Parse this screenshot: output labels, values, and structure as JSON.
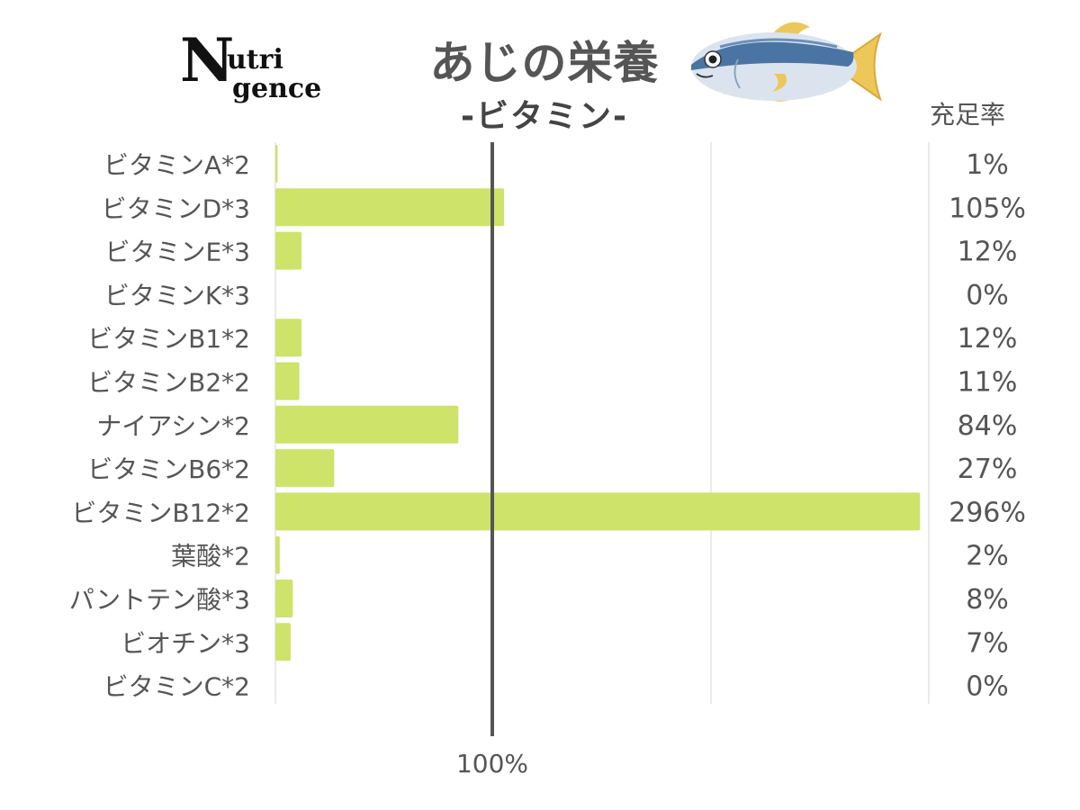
{
  "header": {
    "logo_text": "Nutrigence",
    "title": "あじの栄養",
    "subtitle": "-ビタミン-",
    "rate_column_label": "充足率"
  },
  "icons": {
    "logo": "nutrigence-logo-icon",
    "fish": "horse-mackerel-fish-icon"
  },
  "colors": {
    "bar": "#cde36a",
    "reference_line": "#555555",
    "grid": "#e3e3e3",
    "text": "#555555"
  },
  "chart_data": {
    "type": "bar",
    "orientation": "horizontal",
    "categories": [
      "ビタミンA*2",
      "ビタミンD*3",
      "ビタミンE*3",
      "ビタミンK*3",
      "ビタミンB1*2",
      "ビタミンB2*2",
      "ナイアシン*2",
      "ビタミンB6*2",
      "ビタミンB12*2",
      "葉酸*2",
      "パントテン酸*3",
      "ビオチン*3",
      "ビタミンC*2"
    ],
    "values": [
      1,
      105,
      12,
      0,
      12,
      11,
      84,
      27,
      296,
      2,
      8,
      7,
      0
    ],
    "value_labels": [
      "1%",
      "105%",
      "12%",
      "0%",
      "12%",
      "11%",
      "84%",
      "27%",
      "296%",
      "2%",
      "8%",
      "7%",
      "0%"
    ],
    "xlim": [
      0,
      300
    ],
    "reference_line": {
      "value": 100,
      "label": "100%"
    },
    "grid": true,
    "legend": "none"
  }
}
